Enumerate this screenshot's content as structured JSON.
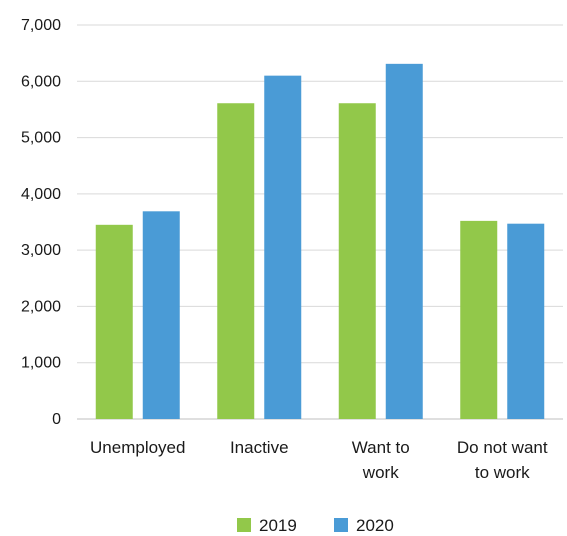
{
  "chart_data": {
    "type": "bar",
    "categories": [
      [
        "Unemployed"
      ],
      [
        "Inactive"
      ],
      [
        "Want to",
        "work"
      ],
      [
        "Do not want",
        "to work"
      ]
    ],
    "series": [
      {
        "name": "2019",
        "color": "#92c84a",
        "values": [
          3450,
          5610,
          5610,
          3520
        ]
      },
      {
        "name": "2020",
        "color": "#4a9bd6",
        "values": [
          3690,
          6100,
          6310,
          3470
        ]
      }
    ],
    "yticks": [
      "0",
      "1,000",
      "2,000",
      "3,000",
      "4,000",
      "5,000",
      "6,000",
      "7,000"
    ],
    "ylim": [
      0,
      7000
    ],
    "grid": true,
    "legend": "bottom"
  }
}
